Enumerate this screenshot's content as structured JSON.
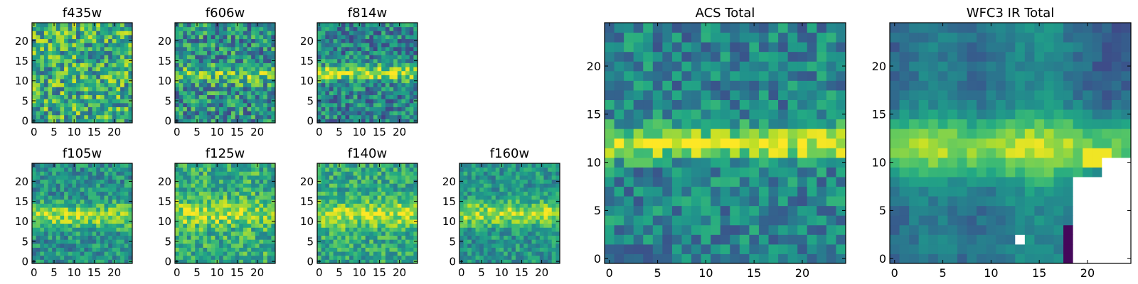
{
  "colormap": "viridis",
  "colors": {
    "viridis": [
      "#440154",
      "#482475",
      "#414487",
      "#355f8d",
      "#2a788e",
      "#21918c",
      "#22a884",
      "#44bf70",
      "#7ad151",
      "#bddf26",
      "#fde725"
    ],
    "missing": "#ffffff",
    "axes": "#000000"
  },
  "chart_data": [
    {
      "id": "f435w",
      "type": "heatmap",
      "title": "f435w",
      "grid_size": 25,
      "xticks": [
        "0",
        "5",
        "10",
        "15",
        "20"
      ],
      "yticks": [
        "0",
        "5",
        "10",
        "15",
        "20"
      ],
      "noise": 0.32,
      "base": 0.62,
      "band": {
        "center": 11.5,
        "width": 2.0,
        "strength": 0.0
      },
      "seed": 11
    },
    {
      "id": "f606w",
      "type": "heatmap",
      "title": "f606w",
      "grid_size": 25,
      "xticks": [
        "0",
        "5",
        "10",
        "15",
        "20"
      ],
      "yticks": [
        "0",
        "5",
        "10",
        "15",
        "20"
      ],
      "noise": 0.3,
      "base": 0.5,
      "band": {
        "center": 11.5,
        "width": 2.2,
        "strength": 0.25
      },
      "seed": 23
    },
    {
      "id": "f814w",
      "type": "heatmap",
      "title": "f814w",
      "grid_size": 25,
      "xticks": [
        "0",
        "5",
        "10",
        "15",
        "20"
      ],
      "yticks": [
        "0",
        "5",
        "10",
        "15",
        "20"
      ],
      "noise": 0.26,
      "base": 0.45,
      "band": {
        "center": 12,
        "width": 1.8,
        "strength": 0.45
      },
      "seed": 37
    },
    {
      "id": "f105w",
      "type": "heatmap",
      "title": "f105w",
      "grid_size": 25,
      "xticks": [
        "0",
        "5",
        "10",
        "15",
        "20"
      ],
      "yticks": [
        "0",
        "5",
        "10",
        "15",
        "20"
      ],
      "noise": 0.2,
      "base": 0.5,
      "band": {
        "center": 11.5,
        "width": 3.0,
        "strength": 0.35
      },
      "seed": 41
    },
    {
      "id": "f125w",
      "type": "heatmap",
      "title": "f125w",
      "grid_size": 25,
      "xticks": [
        "0",
        "5",
        "10",
        "15",
        "20"
      ],
      "yticks": [
        "0",
        "5",
        "10",
        "15",
        "20"
      ],
      "noise": 0.22,
      "base": 0.62,
      "band": {
        "center": 12,
        "width": 3.0,
        "strength": 0.25
      },
      "seed": 53
    },
    {
      "id": "f140w",
      "type": "heatmap",
      "title": "f140w",
      "grid_size": 25,
      "xticks": [
        "0",
        "5",
        "10",
        "15",
        "20"
      ],
      "yticks": [
        "0",
        "5",
        "10",
        "15",
        "20"
      ],
      "noise": 0.2,
      "base": 0.6,
      "band": {
        "center": 12,
        "width": 3.2,
        "strength": 0.3
      },
      "seed": 67
    },
    {
      "id": "f160w",
      "type": "heatmap",
      "title": "f160w",
      "grid_size": 25,
      "xticks": [
        "0",
        "5",
        "10",
        "15",
        "20"
      ],
      "yticks": [
        "0",
        "5",
        "10",
        "15",
        "20"
      ],
      "noise": 0.18,
      "base": 0.52,
      "band": {
        "center": 12,
        "width": 3.0,
        "strength": 0.35
      },
      "seed": 79
    },
    {
      "id": "acs-total",
      "type": "heatmap",
      "title": "ACS Total",
      "grid_size": 25,
      "xticks": [
        "0",
        "5",
        "10",
        "15",
        "20"
      ],
      "yticks": [
        "0",
        "5",
        "10",
        "15",
        "20"
      ],
      "noise": 0.2,
      "base": 0.45,
      "band": {
        "center": 12,
        "width": 1.6,
        "strength": 0.5
      },
      "seed": 97
    },
    {
      "id": "wfc3-ir-total",
      "type": "heatmap",
      "title": "WFC3 IR Total",
      "grid_size": 25,
      "xticks": [
        "0",
        "5",
        "10",
        "15",
        "20"
      ],
      "yticks": [
        "0",
        "5",
        "10",
        "15",
        "20"
      ],
      "noise": 0.08,
      "base": 0.45,
      "band": {
        "center": 11.5,
        "width": 3.2,
        "strength": 0.45
      },
      "seed": 103,
      "masked_region": true
    }
  ]
}
